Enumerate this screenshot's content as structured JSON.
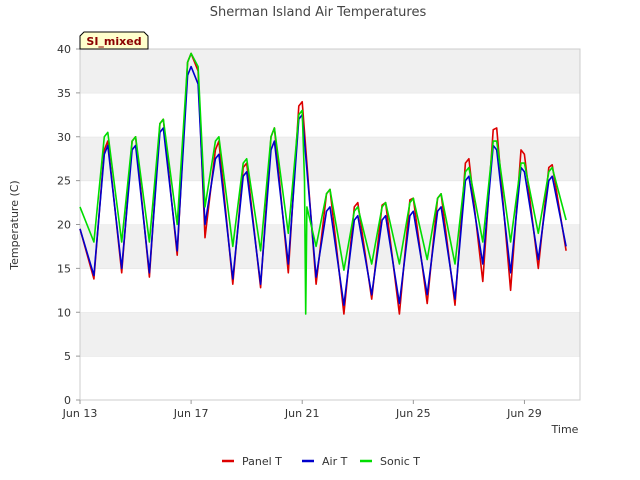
{
  "chart_data": {
    "type": "line",
    "title": "Sherman Island Air Temperatures",
    "xlabel": "Time",
    "ylabel": "Temperature (C)",
    "site_label": "SI_mixed",
    "ylim": [
      0,
      40
    ],
    "yticks": [
      0,
      5,
      10,
      15,
      20,
      25,
      30,
      35,
      40
    ],
    "xlim": [
      "Jun 13",
      "Jul 1"
    ],
    "xticks": [
      "Jun 13",
      "Jun 17",
      "Jun 21",
      "Jun 25",
      "Jun 29"
    ],
    "grid": "horizontal bands",
    "legend_position": "bottom",
    "series": [
      {
        "name": "Panel T",
        "color": "#dd0000",
        "points": [
          [
            "Jun 13 00:00",
            19.5
          ],
          [
            "Jun 13 12:00",
            13.8
          ],
          [
            "Jun 13 21:00",
            28.5
          ],
          [
            "Jun 14 00:00",
            29.5
          ],
          [
            "Jun 14 12:00",
            14.5
          ],
          [
            "Jun 14 21:00",
            29.5
          ],
          [
            "Jun 15 00:00",
            30.0
          ],
          [
            "Jun 15 12:00",
            14.0
          ],
          [
            "Jun 15 21:00",
            31.5
          ],
          [
            "Jun 16 00:00",
            32.0
          ],
          [
            "Jun 16 12:00",
            16.5
          ],
          [
            "Jun 16 21:00",
            38.5
          ],
          [
            "Jun 17 00:00",
            39.5
          ],
          [
            "Jun 17 06:00",
            37.5
          ],
          [
            "Jun 17 12:00",
            18.5
          ],
          [
            "Jun 17 21:00",
            28.5
          ],
          [
            "Jun 18 00:00",
            29.5
          ],
          [
            "Jun 18 12:00",
            13.2
          ],
          [
            "Jun 18 21:00",
            26.5
          ],
          [
            "Jun 19 00:00",
            27.0
          ],
          [
            "Jun 19 12:00",
            12.8
          ],
          [
            "Jun 19 21:00",
            30.0
          ],
          [
            "Jun 20 00:00",
            31.0
          ],
          [
            "Jun 20 12:00",
            14.5
          ],
          [
            "Jun 20 21:00",
            33.5
          ],
          [
            "Jun 21 00:00",
            34.0
          ],
          [
            "Jun 21 12:00",
            13.2
          ],
          [
            "Jun 21 21:00",
            23.5
          ],
          [
            "Jun 22 00:00",
            24.0
          ],
          [
            "Jun 22 12:00",
            9.8
          ],
          [
            "Jun 22 21:00",
            22.0
          ],
          [
            "Jun 23 00:00",
            22.5
          ],
          [
            "Jun 23 12:00",
            11.5
          ],
          [
            "Jun 23 21:00",
            22.2
          ],
          [
            "Jun 24 00:00",
            22.5
          ],
          [
            "Jun 24 12:00",
            9.8
          ],
          [
            "Jun 24 21:00",
            22.8
          ],
          [
            "Jun 25 00:00",
            23.0
          ],
          [
            "Jun 25 12:00",
            11.0
          ],
          [
            "Jun 25 21:00",
            23.0
          ],
          [
            "Jun 26 00:00",
            23.5
          ],
          [
            "Jun 26 12:00",
            10.8
          ],
          [
            "Jun 26 21:00",
            27.0
          ],
          [
            "Jun 27 00:00",
            27.5
          ],
          [
            "Jun 27 12:00",
            13.5
          ],
          [
            "Jun 27 21:00",
            30.8
          ],
          [
            "Jun 28 00:00",
            31.0
          ],
          [
            "Jun 28 12:00",
            12.5
          ],
          [
            "Jun 28 21:00",
            28.5
          ],
          [
            "Jun 29 00:00",
            28.0
          ],
          [
            "Jun 29 12:00",
            15.0
          ],
          [
            "Jun 29 21:00",
            26.5
          ],
          [
            "Jun 30 00:00",
            26.8
          ],
          [
            "Jun 30 12:00",
            17.0
          ]
        ]
      },
      {
        "name": "Air T",
        "color": "#0000cc",
        "points": [
          [
            "Jun 13 00:00",
            19.5
          ],
          [
            "Jun 13 12:00",
            14.2
          ],
          [
            "Jun 13 21:00",
            28.0
          ],
          [
            "Jun 14 00:00",
            29.0
          ],
          [
            "Jun 14 12:00",
            15.0
          ],
          [
            "Jun 14 21:00",
            28.5
          ],
          [
            "Jun 15 00:00",
            29.0
          ],
          [
            "Jun 15 12:00",
            14.5
          ],
          [
            "Jun 15 21:00",
            30.5
          ],
          [
            "Jun 16 00:00",
            31.0
          ],
          [
            "Jun 16 12:00",
            17.0
          ],
          [
            "Jun 16 21:00",
            37.0
          ],
          [
            "Jun 17 00:00",
            38.0
          ],
          [
            "Jun 17 06:00",
            36.0
          ],
          [
            "Jun 17 12:00",
            20.0
          ],
          [
            "Jun 17 21:00",
            27.5
          ],
          [
            "Jun 18 00:00",
            28.0
          ],
          [
            "Jun 18 12:00",
            13.8
          ],
          [
            "Jun 18 21:00",
            25.5
          ],
          [
            "Jun 19 00:00",
            26.0
          ],
          [
            "Jun 19 12:00",
            13.2
          ],
          [
            "Jun 19 21:00",
            28.5
          ],
          [
            "Jun 20 00:00",
            29.5
          ],
          [
            "Jun 20 12:00",
            15.5
          ],
          [
            "Jun 20 21:00",
            32.0
          ],
          [
            "Jun 21 00:00",
            32.5
          ],
          [
            "Jun 21 12:00",
            14.0
          ],
          [
            "Jun 21 21:00",
            21.5
          ],
          [
            "Jun 22 00:00",
            22.0
          ],
          [
            "Jun 22 12:00",
            10.8
          ],
          [
            "Jun 22 21:00",
            20.5
          ],
          [
            "Jun 23 00:00",
            21.0
          ],
          [
            "Jun 23 12:00",
            12.0
          ],
          [
            "Jun 23 21:00",
            20.5
          ],
          [
            "Jun 24 00:00",
            21.0
          ],
          [
            "Jun 24 12:00",
            11.0
          ],
          [
            "Jun 24 21:00",
            21.0
          ],
          [
            "Jun 25 00:00",
            21.5
          ],
          [
            "Jun 25 12:00",
            12.0
          ],
          [
            "Jun 25 21:00",
            21.5
          ],
          [
            "Jun 26 00:00",
            22.0
          ],
          [
            "Jun 26 12:00",
            11.5
          ],
          [
            "Jun 26 21:00",
            25.0
          ],
          [
            "Jun 27 00:00",
            25.5
          ],
          [
            "Jun 27 12:00",
            15.5
          ],
          [
            "Jun 27 21:00",
            29.0
          ],
          [
            "Jun 28 00:00",
            28.5
          ],
          [
            "Jun 28 12:00",
            14.5
          ],
          [
            "Jun 28 21:00",
            26.5
          ],
          [
            "Jun 29 00:00",
            26.0
          ],
          [
            "Jun 29 12:00",
            16.0
          ],
          [
            "Jun 29 21:00",
            25.0
          ],
          [
            "Jun 30 00:00",
            25.5
          ],
          [
            "Jun 30 12:00",
            17.5
          ]
        ]
      },
      {
        "name": "Sonic T",
        "color": "#00dd00",
        "points": [
          [
            "Jun 13 00:00",
            22.0
          ],
          [
            "Jun 13 12:00",
            18.0
          ],
          [
            "Jun 13 21:00",
            30.0
          ],
          [
            "Jun 14 00:00",
            30.5
          ],
          [
            "Jun 14 12:00",
            18.0
          ],
          [
            "Jun 14 21:00",
            29.5
          ],
          [
            "Jun 15 00:00",
            30.0
          ],
          [
            "Jun 15 12:00",
            18.0
          ],
          [
            "Jun 15 21:00",
            31.5
          ],
          [
            "Jun 16 00:00",
            32.0
          ],
          [
            "Jun 16 12:00",
            20.0
          ],
          [
            "Jun 16 21:00",
            38.5
          ],
          [
            "Jun 17 00:00",
            39.5
          ],
          [
            "Jun 17 06:00",
            38.0
          ],
          [
            "Jun 17 12:00",
            22.0
          ],
          [
            "Jun 17 21:00",
            29.5
          ],
          [
            "Jun 18 00:00",
            30.0
          ],
          [
            "Jun 18 12:00",
            17.5
          ],
          [
            "Jun 18 21:00",
            27.0
          ],
          [
            "Jun 19 00:00",
            27.5
          ],
          [
            "Jun 19 12:00",
            17.0
          ],
          [
            "Jun 19 21:00",
            30.0
          ],
          [
            "Jun 20 00:00",
            31.0
          ],
          [
            "Jun 20 12:00",
            19.0
          ],
          [
            "Jun 20 21:00",
            32.5
          ],
          [
            "Jun 21 00:00",
            33.0
          ],
          [
            "Jun 21 02:00",
            25.0
          ],
          [
            "Jun 21 03:00",
            9.8
          ],
          [
            "Jun 21 04:00",
            22.0
          ],
          [
            "Jun 21 12:00",
            17.5
          ],
          [
            "Jun 21 21:00",
            23.5
          ],
          [
            "Jun 22 00:00",
            24.0
          ],
          [
            "Jun 22 12:00",
            14.8
          ],
          [
            "Jun 22 21:00",
            21.5
          ],
          [
            "Jun 23 00:00",
            22.0
          ],
          [
            "Jun 23 12:00",
            15.5
          ],
          [
            "Jun 23 21:00",
            22.0
          ],
          [
            "Jun 24 00:00",
            22.5
          ],
          [
            "Jun 24 12:00",
            15.5
          ],
          [
            "Jun 24 21:00",
            22.5
          ],
          [
            "Jun 25 00:00",
            23.0
          ],
          [
            "Jun 25 12:00",
            16.0
          ],
          [
            "Jun 25 21:00",
            23.0
          ],
          [
            "Jun 26 00:00",
            23.5
          ],
          [
            "Jun 26 12:00",
            15.5
          ],
          [
            "Jun 26 21:00",
            26.0
          ],
          [
            "Jun 27 00:00",
            26.5
          ],
          [
            "Jun 27 12:00",
            18.0
          ],
          [
            "Jun 27 21:00",
            29.5
          ],
          [
            "Jun 28 00:00",
            29.5
          ],
          [
            "Jun 28 12:00",
            18.0
          ],
          [
            "Jun 28 21:00",
            27.0
          ],
          [
            "Jun 29 00:00",
            27.0
          ],
          [
            "Jun 29 12:00",
            19.0
          ],
          [
            "Jun 29 21:00",
            26.0
          ],
          [
            "Jun 30 00:00",
            26.5
          ],
          [
            "Jun 30 12:00",
            20.5
          ]
        ]
      }
    ]
  }
}
